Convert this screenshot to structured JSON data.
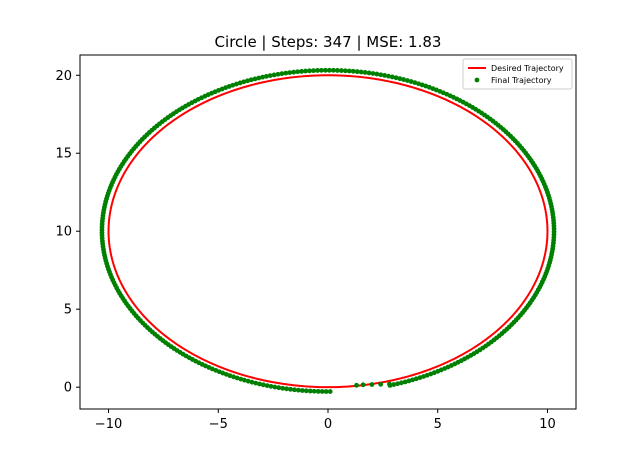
{
  "chart_data": {
    "type": "line",
    "title": "Circle | Steps: 347 | MSE: 1.83",
    "xlabel": "",
    "ylabel": "",
    "xlim": [
      -11.3,
      11.3
    ],
    "ylim": [
      -1.4,
      21.3
    ],
    "xticks": [
      -10,
      -5,
      0,
      5,
      10
    ],
    "xtick_labels": [
      "−10",
      "−5",
      "0",
      "5",
      "10"
    ],
    "yticks": [
      0,
      5,
      10,
      15,
      20
    ],
    "ytick_labels": [
      "0",
      "5",
      "10",
      "15",
      "20"
    ],
    "grid": false,
    "legend_position": "top-right",
    "series": [
      {
        "name": "Desired Trajectory",
        "kind": "line",
        "color": "#ff0000",
        "shape": "circle",
        "center": [
          0,
          10
        ],
        "radius": 10
      },
      {
        "name": "Final Trajectory",
        "kind": "scatter",
        "color": "#008000",
        "steps": 347,
        "center": [
          0,
          10.02
        ],
        "radius_start": 10.3,
        "radius_end": 10.3,
        "start_point": [
          1.3,
          0.12
        ],
        "end_point": [
          0.1,
          -0.3
        ],
        "tail_points": [
          [
            1.3,
            0.12
          ],
          [
            1.6,
            0.15
          ],
          [
            2.0,
            0.17
          ],
          [
            2.4,
            0.18
          ],
          [
            2.8,
            0.2
          ]
        ]
      }
    ]
  }
}
